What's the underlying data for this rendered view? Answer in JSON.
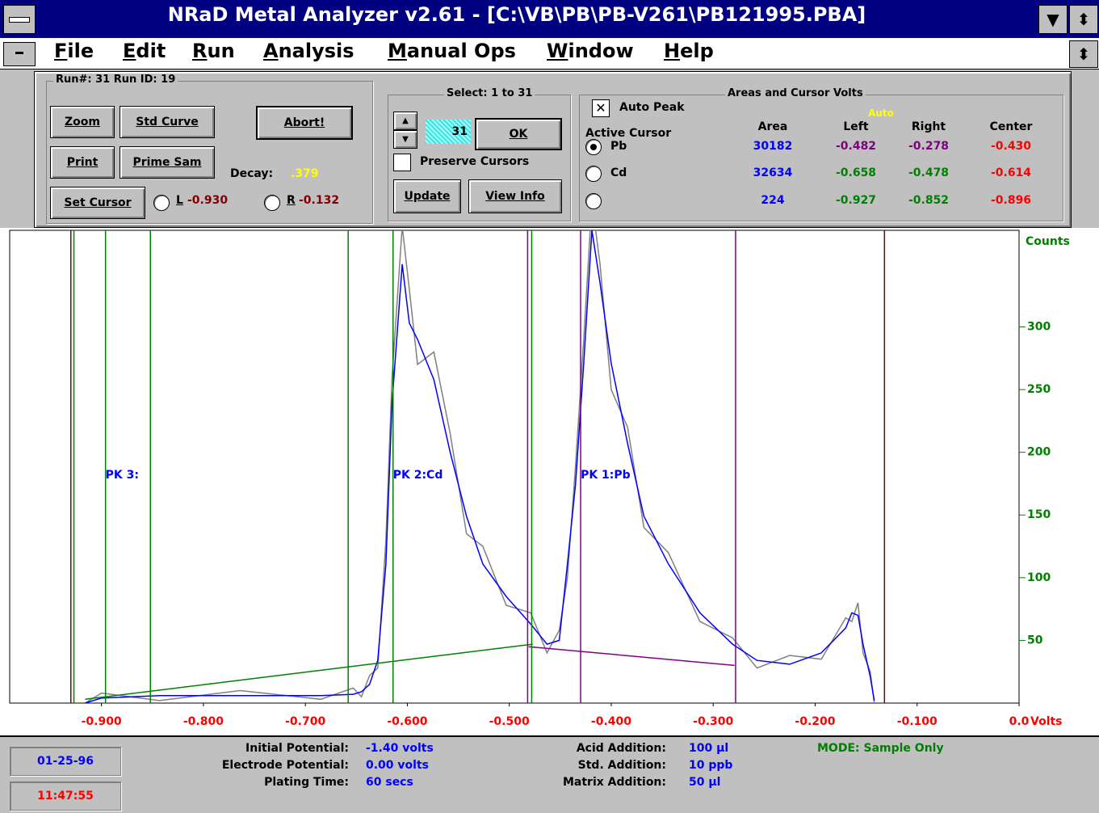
{
  "window": {
    "title": "NRaD Metal Analyzer v2.61 - [C:\\VB\\PB\\PB-V261\\PB121995.PBA]"
  },
  "menu": [
    "File",
    "Edit",
    "Run",
    "Analysis",
    "Manual Ops",
    "Window",
    "Help"
  ],
  "controls": {
    "run_group": "Run#: 31 Run ID: 19",
    "zoom": "Zoom",
    "std_curve": "Std Curve",
    "abort": "Abort!",
    "print": "Print",
    "prime_sam": "Prime Sam",
    "set_cursor": "Set Cursor",
    "decay_label": "Decay:",
    "decay_value": ".379",
    "cursor_l_label": "L",
    "cursor_l": {
      "value": -0.93,
      "label": "-0.930"
    },
    "cursor_r_label": "R",
    "cursor_r": {
      "value": -0.132,
      "label": "-0.132"
    },
    "select_group": "Select: 1 to 31",
    "select_value": 31,
    "ok": "OK",
    "preserve": "Preserve Cursors",
    "update": "Update",
    "view_info": "View Info",
    "areas_group": "Areas and Cursor Volts",
    "auto_peak": "Auto Peak",
    "auto": "Auto",
    "active_cursor": "Active Cursor",
    "columns": [
      "Area",
      "Left",
      "Right",
      "Center"
    ],
    "peaks": [
      {
        "name": "Pb",
        "chart_label": "PK 1:Pb",
        "area": 30182,
        "left": {
          "value": -0.482,
          "label": "-0.482"
        },
        "right": {
          "value": -0.278,
          "label": "-0.278"
        },
        "center": {
          "value": -0.43,
          "label": "-0.430"
        }
      },
      {
        "name": "Cd",
        "chart_label": "PK 2:Cd",
        "area": 32634,
        "left": {
          "value": -0.658,
          "label": "-0.658"
        },
        "right": {
          "value": -0.478,
          "label": "-0.478"
        },
        "center": {
          "value": -0.614,
          "label": "-0.614"
        }
      },
      {
        "chart_label": "PK 3:",
        "area": 224,
        "left": {
          "value": -0.927,
          "label": "-0.927"
        },
        "right": {
          "value": -0.852,
          "label": "-0.852"
        },
        "center": {
          "value": -0.896,
          "label": "-0.896"
        }
      }
    ]
  },
  "chart_data": {
    "type": "line",
    "y_axis_label": "Counts",
    "x_axis_label": "Volts",
    "xlim": [
      -0.99,
      0.0
    ],
    "ylim": [
      0,
      377
    ],
    "xticks": [
      {
        "value": -0.9,
        "label": "-0.900"
      },
      {
        "value": -0.8,
        "label": "-0.800"
      },
      {
        "value": -0.7,
        "label": "-0.700"
      },
      {
        "value": -0.6,
        "label": "-0.600"
      },
      {
        "value": -0.5,
        "label": "-0.500"
      },
      {
        "value": -0.4,
        "label": "-0.400"
      },
      {
        "value": -0.3,
        "label": "-0.300"
      },
      {
        "value": -0.2,
        "label": "-0.200"
      },
      {
        "value": -0.1,
        "label": "-0.100"
      },
      {
        "value": 0,
        "label": "0.0"
      }
    ],
    "yticks": [
      50,
      100,
      150,
      200,
      250,
      300
    ],
    "x": [
      -0.916,
      -0.9,
      -0.843,
      -0.764,
      -0.685,
      -0.653,
      -0.645,
      -0.637,
      -0.629,
      -0.621,
      -0.615,
      -0.605,
      -0.598,
      -0.59,
      -0.574,
      -0.558,
      -0.542,
      -0.526,
      -0.503,
      -0.479,
      -0.463,
      -0.451,
      -0.443,
      -0.435,
      -0.427,
      -0.419,
      -0.411,
      -0.4,
      -0.384,
      -0.368,
      -0.344,
      -0.313,
      -0.281,
      -0.257,
      -0.225,
      -0.194,
      -0.17,
      -0.164,
      -0.158,
      -0.153,
      -0.146,
      -0.142
    ],
    "series": [
      {
        "color": "#808080",
        "values": [
          0,
          8,
          2,
          10,
          3,
          12,
          5,
          22,
          28,
          130,
          260,
          380,
          330,
          270,
          280,
          215,
          135,
          125,
          78,
          72,
          40,
          58,
          100,
          190,
          290,
          400,
          350,
          250,
          220,
          140,
          120,
          65,
          52,
          28,
          38,
          35,
          68,
          65,
          80,
          40,
          25,
          0
        ]
      },
      {
        "color": "#0000ff",
        "values": [
          0,
          4,
          6,
          6,
          6,
          7,
          9,
          15,
          34,
          111,
          239,
          350,
          303,
          290,
          258,
          200,
          149,
          111,
          85,
          63,
          47,
          50,
          111,
          175,
          271,
          377,
          335,
          271,
          207,
          149,
          111,
          72,
          47,
          34,
          31,
          40,
          60,
          72,
          70,
          47,
          21,
          2
        ]
      }
    ],
    "baselines": [
      {
        "color": "#008000",
        "x": [
          -0.916,
          -0.477
        ],
        "values": [
          3,
          47
        ]
      },
      {
        "color": "#800080",
        "x": [
          -0.481,
          -0.279
        ],
        "values": [
          45,
          30
        ]
      }
    ]
  },
  "status": {
    "date": "01-25-96",
    "time": "11:47:55",
    "params_left": [
      [
        "Initial Potential:",
        "-1.40 volts"
      ],
      [
        "Electrode Potential:",
        "0.00 volts"
      ],
      [
        "Plating Time:",
        "60 secs"
      ]
    ],
    "params_right": [
      [
        "Acid Addition:",
        "100 µl"
      ],
      [
        "Std. Addition:",
        "10 ppb"
      ],
      [
        "Matrix Addition:",
        "50 µl"
      ]
    ],
    "mode": "MODE: Sample Only"
  }
}
